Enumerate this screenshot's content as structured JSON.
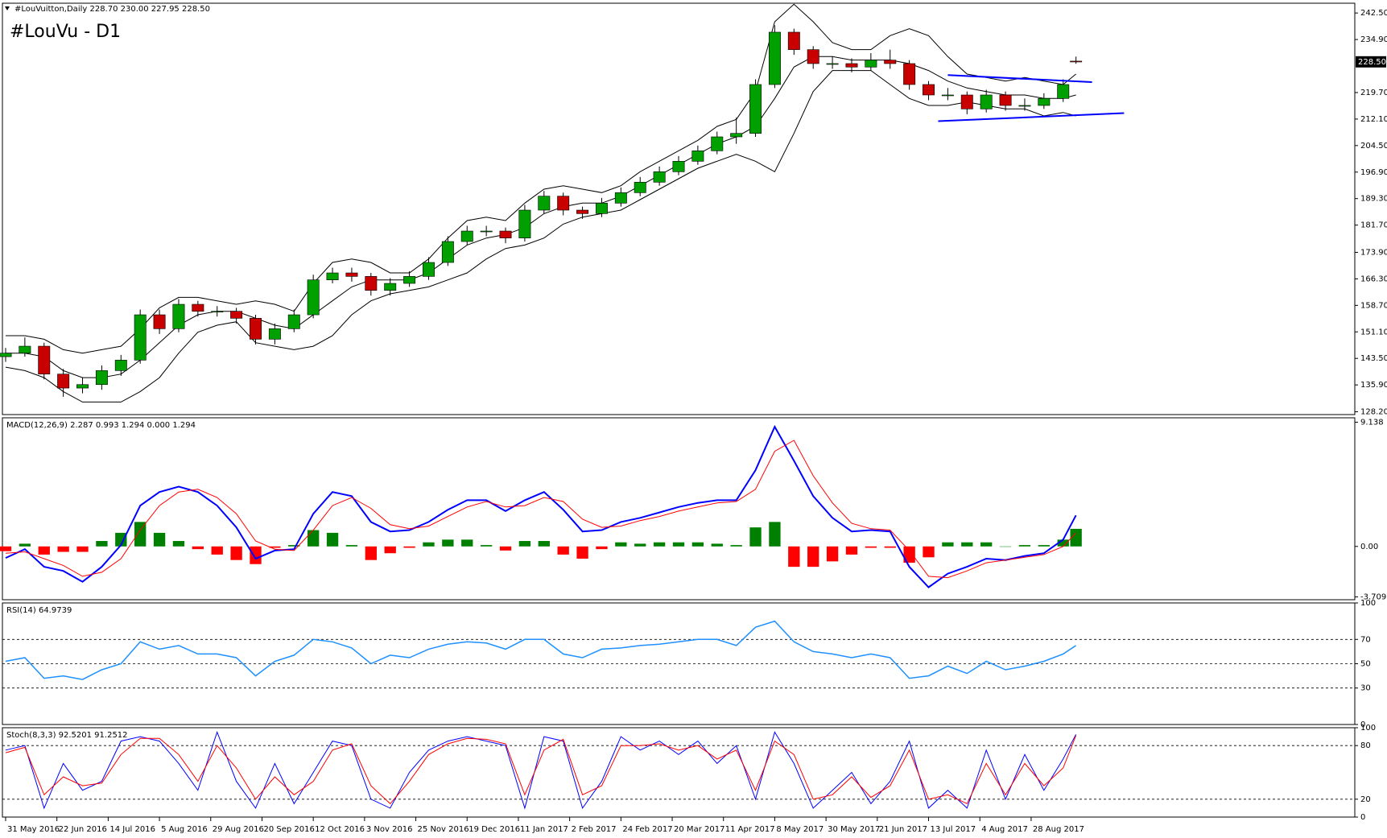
{
  "chart_data": [
    {
      "type": "candlestick",
      "title": "#LouVu - D1",
      "header": "#LouVuitton,Daily  228.70 230.00 227.95 228.50",
      "up_color": "#00a000",
      "down_color": "#c80000",
      "x": [
        0,
        6,
        12,
        18,
        24,
        30,
        36,
        42,
        48,
        54,
        60,
        66,
        72,
        78,
        84,
        90,
        96,
        102,
        108,
        114,
        120,
        126,
        132,
        138,
        144,
        150,
        156,
        162,
        168,
        174,
        180,
        186,
        192,
        198,
        204,
        210,
        216,
        222,
        228,
        234,
        240,
        246,
        252,
        258,
        264,
        270,
        276,
        282,
        288,
        294,
        300,
        306,
        312,
        318,
        324,
        330,
        334
      ],
      "xlim": [
        -1,
        421
      ],
      "xticks": [
        {
          "value": 0,
          "label": "31 May 2016"
        },
        {
          "value": 16,
          "label": "22 Jun 2016"
        },
        {
          "value": 32,
          "label": "14 Jul 2016"
        },
        {
          "value": 48,
          "label": "5 Aug 2016"
        },
        {
          "value": 64,
          "label": "29 Aug 2016"
        },
        {
          "value": 80,
          "label": "20 Sep 2016"
        },
        {
          "value": 96,
          "label": "12 Oct 2016"
        },
        {
          "value": 112,
          "label": "3 Nov 2016"
        },
        {
          "value": 128,
          "label": "25 Nov 2016"
        },
        {
          "value": 144,
          "label": "19 Dec 2016"
        },
        {
          "value": 160,
          "label": "11 Jan 2017"
        },
        {
          "value": 176,
          "label": "2 Feb 2017"
        },
        {
          "value": 192,
          "label": "24 Feb 2017"
        },
        {
          "value": 208,
          "label": "20 Mar 2017"
        },
        {
          "value": 224,
          "label": "11 Apr 2017"
        },
        {
          "value": 240,
          "label": "8 May 2017"
        },
        {
          "value": 256,
          "label": "30 May 2017"
        },
        {
          "value": 272,
          "label": "21 Jun 2017"
        },
        {
          "value": 288,
          "label": "13 Jul 2017"
        },
        {
          "value": 304,
          "label": "4 Aug 2017"
        },
        {
          "value": 320,
          "label": "28 Aug 2017"
        }
      ],
      "ohlc": [
        [
          144,
          146.5,
          142.5,
          145
        ],
        [
          145,
          149.5,
          144,
          147
        ],
        [
          147,
          148,
          137.5,
          139
        ],
        [
          139,
          140.5,
          132.5,
          135
        ],
        [
          135,
          138,
          133.5,
          136
        ],
        [
          136,
          141.5,
          134.5,
          140
        ],
        [
          140,
          144.5,
          138.5,
          143
        ],
        [
          143,
          157.5,
          142,
          156
        ],
        [
          156,
          157.5,
          150.5,
          152
        ],
        [
          152,
          160.5,
          151,
          159
        ],
        [
          159,
          160,
          155.5,
          157
        ],
        [
          157,
          158.5,
          155.5,
          157
        ],
        [
          157,
          158,
          153.5,
          155
        ],
        [
          155,
          156,
          147.5,
          149
        ],
        [
          149,
          153.5,
          147.5,
          152
        ],
        [
          152,
          157.5,
          151,
          156
        ],
        [
          156,
          167.5,
          155,
          166
        ],
        [
          166,
          169.5,
          165,
          168
        ],
        [
          168,
          169.5,
          165.5,
          167
        ],
        [
          167,
          168,
          161.5,
          163
        ],
        [
          163,
          166.5,
          161.5,
          165
        ],
        [
          165,
          168.5,
          164,
          167
        ],
        [
          167,
          172.5,
          166,
          171
        ],
        [
          171,
          178.5,
          170,
          177
        ],
        [
          177,
          181.5,
          176,
          180
        ],
        [
          180,
          181.5,
          178.5,
          180
        ],
        [
          180,
          181,
          176.5,
          178
        ],
        [
          178,
          187.5,
          177,
          186
        ],
        [
          186,
          191.5,
          185,
          190
        ],
        [
          190,
          191,
          184.5,
          186
        ],
        [
          186,
          187,
          183.5,
          185
        ],
        [
          185,
          189.5,
          184,
          188
        ],
        [
          188,
          192.5,
          187,
          191
        ],
        [
          191,
          195.5,
          190,
          194
        ],
        [
          194,
          198.5,
          193,
          197
        ],
        [
          197,
          201.5,
          196,
          200
        ],
        [
          200,
          204.5,
          199,
          203
        ],
        [
          203,
          208.5,
          202,
          207
        ],
        [
          207,
          212.5,
          205,
          208
        ],
        [
          208,
          223.5,
          207,
          222
        ],
        [
          222,
          239,
          221,
          237
        ],
        [
          237,
          238,
          230.5,
          232
        ],
        [
          232,
          233,
          226.5,
          228
        ],
        [
          228,
          230,
          226.5,
          228
        ],
        [
          228,
          229.5,
          225.5,
          227
        ],
        [
          227,
          231,
          226,
          229
        ],
        [
          229,
          232,
          226.5,
          228
        ],
        [
          228,
          229,
          220.5,
          222
        ],
        [
          222,
          223,
          217.5,
          219
        ],
        [
          219,
          221,
          217.5,
          219
        ],
        [
          219,
          220,
          213.5,
          215
        ],
        [
          215,
          220.5,
          214,
          219
        ],
        [
          219,
          220,
          214.5,
          216
        ],
        [
          216,
          218,
          214.5,
          216
        ],
        [
          216,
          219.5,
          215,
          218
        ],
        [
          218,
          223.5,
          217,
          222
        ],
        [
          228.7,
          230,
          227.95,
          228.5
        ]
      ],
      "series": [
        {
          "color": "#000000",
          "values": [
            150,
            150,
            149,
            146,
            145,
            146,
            147,
            152,
            158,
            161,
            161,
            160,
            159,
            160,
            159,
            157,
            165,
            171,
            172,
            171,
            168,
            168,
            172,
            178,
            183,
            184,
            183,
            188,
            192,
            193,
            192,
            191,
            193,
            197,
            200,
            203,
            206,
            210,
            212,
            220,
            240,
            245,
            240,
            234,
            232,
            232,
            236,
            238,
            236,
            230,
            225,
            224,
            223,
            224,
            223,
            222,
            225
          ]
        },
        {
          "color": "#000000",
          "values": [
            145,
            145,
            144,
            140,
            138,
            138,
            139,
            143,
            148,
            153,
            156,
            157,
            157,
            155,
            153,
            152,
            156,
            160,
            164,
            166,
            166,
            166,
            168,
            172,
            176,
            178,
            179,
            181,
            185,
            187,
            188,
            188,
            190,
            193,
            196,
            199,
            202,
            205,
            207,
            210,
            218,
            227,
            230,
            230,
            229,
            229,
            229,
            228,
            226,
            223,
            221,
            220,
            219,
            219,
            218,
            218,
            219
          ]
        },
        {
          "color": "#000000",
          "values": [
            141,
            140,
            138,
            134,
            131,
            131,
            131,
            134,
            138,
            145,
            151,
            153,
            154,
            148,
            147,
            146,
            147,
            150,
            156,
            160,
            162,
            163,
            164,
            166,
            168,
            172,
            175,
            176,
            178,
            182,
            184,
            185,
            186,
            189,
            192,
            195,
            198,
            200,
            202,
            200,
            197,
            208,
            220,
            226,
            226,
            226,
            222,
            218,
            216,
            216,
            217,
            216,
            215,
            215,
            213,
            214,
            213
          ]
        }
      ],
      "trendlines": [
        {
          "color": "#0000ff",
          "x": [
            294,
            339
          ],
          "y": [
            224.7,
            222.7
          ]
        },
        {
          "color": "#0000ff",
          "x": [
            291,
            349
          ],
          "y": [
            211.5,
            213.8
          ]
        }
      ],
      "current_price": {
        "value": 228.5,
        "label": "228.50"
      },
      "ylim": [
        127.4,
        245.3
      ],
      "yticks": [
        {
          "value": 128.2,
          "label": "128.20"
        },
        {
          "value": 135.9,
          "label": "135.90"
        },
        {
          "value": 143.5,
          "label": "143.50"
        },
        {
          "value": 151.1,
          "label": "151.10"
        },
        {
          "value": 158.7,
          "label": "158.70"
        },
        {
          "value": 166.3,
          "label": "166.30"
        },
        {
          "value": 173.9,
          "label": "173.90"
        },
        {
          "value": 181.7,
          "label": "181.70"
        },
        {
          "value": 189.3,
          "label": "189.30"
        },
        {
          "value": 196.9,
          "label": "196.90"
        },
        {
          "value": 204.5,
          "label": "204.50"
        },
        {
          "value": 212.1,
          "label": "212.10"
        },
        {
          "value": 219.7,
          "label": "219.70"
        },
        {
          "value": 234.9,
          "label": "234.90"
        },
        {
          "value": 242.5,
          "label": "242.50"
        }
      ]
    },
    {
      "type": "macd",
      "label": "MACD(12,26,9) 2.287 0.993 1.294 0.000 1.294",
      "series": [
        {
          "color": "#0000ff",
          "width": 2,
          "values": [
            -0.85,
            -0.2,
            -1.5,
            -1.8,
            -2.6,
            -1.5,
            0.1,
            3.0,
            4.0,
            4.4,
            4.0,
            3.0,
            1.4,
            -0.9,
            -0.3,
            -0.2,
            2.4,
            4.0,
            3.7,
            1.8,
            1.1,
            1.2,
            1.8,
            2.7,
            3.4,
            3.4,
            2.6,
            3.4,
            4.0,
            2.7,
            1.1,
            1.2,
            1.8,
            2.1,
            2.5,
            2.9,
            3.2,
            3.4,
            3.4,
            5.6,
            8.8,
            6.3,
            3.7,
            2.1,
            1.1,
            1.2,
            1.1,
            -1.5,
            -3.0,
            -2.0,
            -1.5,
            -0.9,
            -1.0,
            -0.7,
            -0.5,
            0.5,
            2.287
          ]
        },
        {
          "color": "#ff0000",
          "width": 1,
          "values": [
            -0.5,
            -0.4,
            -0.9,
            -1.4,
            -2.2,
            -1.9,
            -0.9,
            1.2,
            3.0,
            4.0,
            4.2,
            3.6,
            2.4,
            0.4,
            -0.2,
            -0.3,
            1.2,
            3.0,
            3.6,
            2.8,
            1.6,
            1.3,
            1.5,
            2.2,
            2.9,
            3.3,
            2.9,
            3.0,
            3.6,
            3.3,
            2.0,
            1.4,
            1.5,
            1.9,
            2.2,
            2.6,
            2.9,
            3.2,
            3.3,
            4.2,
            7.0,
            7.8,
            5.2,
            3.2,
            1.7,
            1.3,
            1.2,
            -0.3,
            -2.2,
            -2.3,
            -1.8,
            -1.2,
            -1.0,
            -0.8,
            -0.6,
            0.0,
            0.993
          ]
        }
      ],
      "histogram": {
        "up_color": "#008000",
        "down_color": "#ff0000",
        "values": [
          -0.35,
          0.2,
          -0.6,
          -0.4,
          -0.4,
          0.4,
          1.0,
          1.8,
          1.0,
          0.4,
          -0.2,
          -0.6,
          -1.0,
          -1.3,
          -0.1,
          0.1,
          1.2,
          1.0,
          0.1,
          -1.0,
          -0.5,
          -0.1,
          0.3,
          0.5,
          0.5,
          0.1,
          -0.3,
          0.4,
          0.4,
          -0.6,
          -0.9,
          -0.2,
          0.3,
          0.2,
          0.3,
          0.3,
          0.3,
          0.2,
          0.1,
          1.4,
          1.8,
          -1.5,
          -1.5,
          -1.1,
          -0.6,
          -0.1,
          -0.1,
          -1.2,
          -0.8,
          0.3,
          0.3,
          0.3,
          0.0,
          0.1,
          0.1,
          0.5,
          1.294
        ]
      },
      "ylim": [
        -3.92,
        9.46
      ],
      "yticks": [
        {
          "value": 9.138,
          "label": "9.138"
        },
        {
          "value": 0,
          "label": "0.00"
        },
        {
          "value": -3.709,
          "label": "-3.709"
        }
      ]
    },
    {
      "type": "line",
      "label": "RSI(14) 64.9739",
      "series": [
        {
          "color": "#1e90ff",
          "width": 1.5,
          "values": [
            52,
            55,
            38,
            40,
            37,
            45,
            50,
            68,
            62,
            65,
            58,
            58,
            55,
            40,
            52,
            57,
            70,
            68,
            63,
            50,
            57,
            55,
            62,
            66,
            68,
            67,
            62,
            70,
            70,
            58,
            55,
            62,
            63,
            65,
            66,
            68,
            70,
            70,
            65,
            80,
            85,
            68,
            60,
            58,
            55,
            58,
            55,
            38,
            40,
            48,
            42,
            52,
            45,
            48,
            52,
            58,
            64.97
          ]
        }
      ],
      "levels": [
        30,
        50,
        70
      ],
      "ylim": [
        0,
        100
      ],
      "yticks": [
        0,
        30,
        50,
        70,
        100
      ]
    },
    {
      "type": "line",
      "label": "Stoch(8,3,3) 92.5201 91.2512",
      "series": [
        {
          "color": "#0000ff",
          "width": 1,
          "values": [
            75,
            80,
            10,
            60,
            30,
            40,
            85,
            90,
            85,
            60,
            30,
            95,
            40,
            10,
            60,
            15,
            50,
            85,
            80,
            20,
            10,
            50,
            75,
            85,
            90,
            85,
            80,
            10,
            90,
            85,
            10,
            40,
            90,
            75,
            85,
            70,
            85,
            60,
            80,
            20,
            95,
            60,
            10,
            30,
            50,
            15,
            40,
            85,
            10,
            30,
            10,
            75,
            20,
            70,
            30,
            65,
            92.52
          ]
        },
        {
          "color": "#ff0000",
          "width": 1,
          "values": [
            72,
            78,
            25,
            45,
            35,
            38,
            70,
            88,
            88,
            70,
            40,
            80,
            55,
            20,
            45,
            25,
            40,
            75,
            82,
            35,
            15,
            40,
            70,
            82,
            88,
            87,
            82,
            25,
            75,
            87,
            25,
            35,
            80,
            80,
            82,
            75,
            80,
            65,
            75,
            30,
            85,
            70,
            20,
            25,
            45,
            22,
            35,
            75,
            20,
            25,
            15,
            60,
            25,
            60,
            35,
            55,
            91.25
          ]
        }
      ],
      "levels": [
        20,
        80
      ],
      "ylim": [
        0,
        100
      ],
      "yticks": [
        0,
        20,
        80,
        100
      ]
    }
  ]
}
